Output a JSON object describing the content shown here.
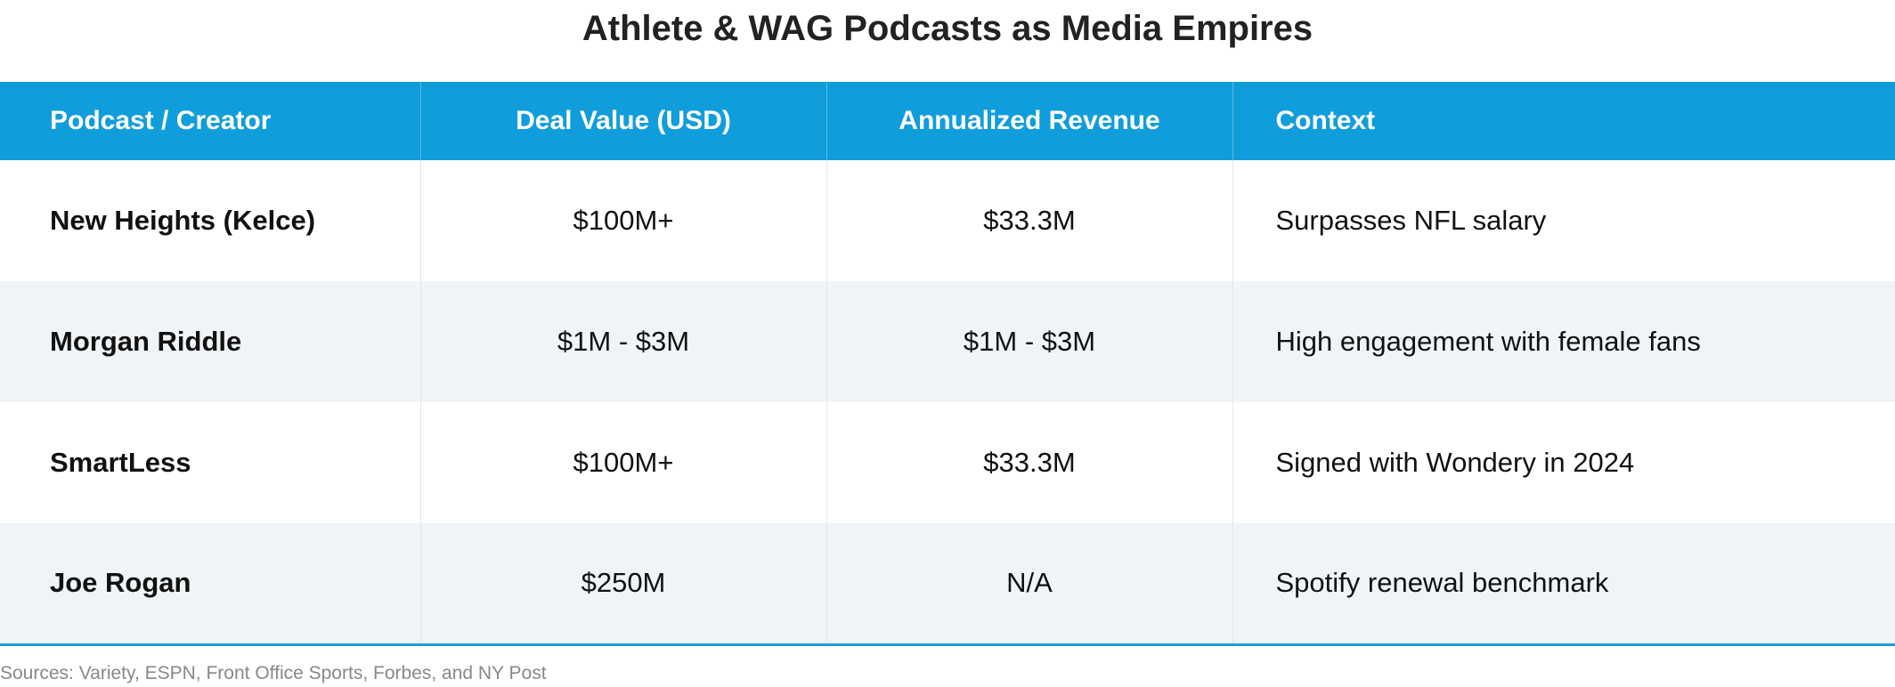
{
  "title": "Athlete & WAG Podcasts as Media Empires",
  "columns": [
    "Podcast / Creator",
    "Deal Value (USD)",
    "Annualized Revenue",
    "Context"
  ],
  "rows": [
    [
      "New Heights (Kelce)",
      "$100M+",
      "$33.3M",
      "Surpasses NFL salary"
    ],
    [
      "Morgan Riddle",
      "$1M - $3M",
      "$1M - $3M",
      "High engagement with female fans"
    ],
    [
      "SmartLess",
      "$100M+",
      "$33.3M",
      "Signed with Wondery in 2024"
    ],
    [
      "Joe Rogan",
      "$250M",
      "N/A",
      "Spotify renewal benchmark"
    ]
  ],
  "sources": "Sources: Variety, ESPN, Front Office Sports, Forbes, and NY Post",
  "colors": {
    "header": "#109ddb",
    "alt_row": "#f0f4f7"
  }
}
